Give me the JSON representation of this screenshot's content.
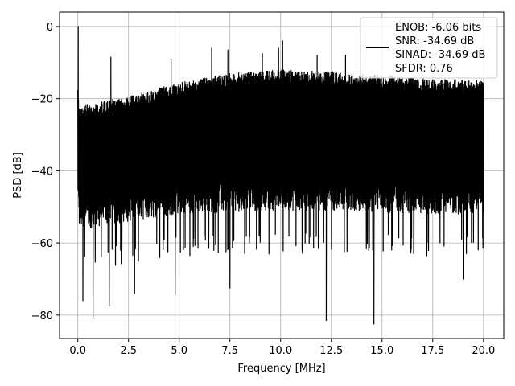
{
  "chart_data": {
    "type": "line",
    "xlabel": "Frequency [MHz]",
    "ylabel": "PSD [dB]",
    "xlim": [
      -0.9,
      21.0
    ],
    "ylim": [
      -86.5,
      4.0
    ],
    "xticks": [
      0.0,
      2.5,
      5.0,
      7.5,
      10.0,
      12.5,
      15.0,
      17.5,
      20.0
    ],
    "xtick_labels": [
      "0.0",
      "2.5",
      "5.0",
      "7.5",
      "10.0",
      "12.5",
      "15.0",
      "17.5",
      "20.0"
    ],
    "yticks": [
      0,
      -20,
      -40,
      -60,
      -80
    ],
    "ytick_labels": [
      "0",
      "−20",
      "−40",
      "−60",
      "−80"
    ],
    "grid": true,
    "legend_position": "top-right",
    "colors": {
      "line": "#000000",
      "grid": "#b0b0b0",
      "background": "#ffffff"
    },
    "series": [
      {
        "name": "ENOB: -6.06 bits\nSNR: -34.69 dB\nSINAD: -34.69 dB\nSFDR: 0.76",
        "legend_lines": [
          "ENOB: -6.06 bits",
          "SNR: -34.69 dB",
          "SINAD: -34.69 dB",
          "SFDR: 0.76"
        ],
        "color": "#000000",
        "envelope_x": [
          0.0,
          0.05,
          0.5,
          2.5,
          5.0,
          7.5,
          10.0,
          12.5,
          15.0,
          17.5,
          20.0
        ],
        "envelope_upper": [
          -15.0,
          -22.0,
          -21.5,
          -19.5,
          -15.5,
          -13.0,
          -12.0,
          -12.5,
          -13.5,
          -14.5,
          -15.0
        ],
        "envelope_lower": [
          -52.0,
          -62.0,
          -62.0,
          -60.0,
          -58.0,
          -57.5,
          -57.0,
          -57.0,
          -57.5,
          -58.0,
          -58.0
        ],
        "peaks": [
          {
            "x": 0.02,
            "y": 0.0
          },
          {
            "x": 1.63,
            "y": -8.5
          },
          {
            "x": 4.6,
            "y": -9.0
          },
          {
            "x": 6.6,
            "y": -6.0
          },
          {
            "x": 7.4,
            "y": -6.5
          },
          {
            "x": 9.1,
            "y": -7.5
          },
          {
            "x": 9.9,
            "y": -6.0
          },
          {
            "x": 10.1,
            "y": -4.0
          },
          {
            "x": 11.8,
            "y": -8.0
          },
          {
            "x": 13.2,
            "y": -8.0
          }
        ],
        "dips": [
          {
            "x": 0.25,
            "y": -76.0
          },
          {
            "x": 0.75,
            "y": -81.0
          },
          {
            "x": 1.55,
            "y": -77.5
          },
          {
            "x": 2.8,
            "y": -74.0
          },
          {
            "x": 4.8,
            "y": -74.5
          },
          {
            "x": 7.5,
            "y": -72.5
          },
          {
            "x": 12.25,
            "y": -81.5
          },
          {
            "x": 14.6,
            "y": -82.5
          },
          {
            "x": 19.0,
            "y": -70.0
          }
        ]
      }
    ]
  }
}
